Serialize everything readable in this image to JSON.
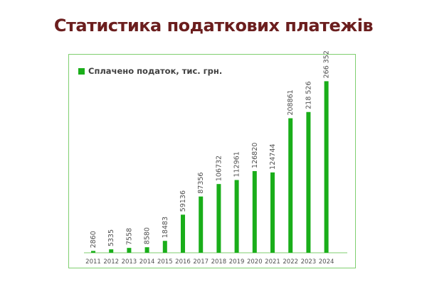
{
  "page": {
    "title": "Статистика податкових платежів"
  },
  "colors": {
    "bar": "#1aae1a",
    "title": "#6b1e1e",
    "frame": "#7fcf6f",
    "axis": "#7fcf6f",
    "text": "#505050"
  },
  "chart_data": {
    "type": "bar",
    "title": "",
    "xlabel": "",
    "ylabel": "",
    "legend": {
      "placement": "top-left",
      "entries": [
        "Сплачено податок, тис. грн."
      ]
    },
    "grid": false,
    "ylim": [
      0,
      280000
    ],
    "categories": [
      "2011",
      "2012",
      "2013",
      "2014",
      "2015",
      "2016",
      "2017",
      "2018",
      "2019",
      "2020",
      "2021",
      "2022",
      "2023",
      "2024"
    ],
    "series": [
      {
        "name": "Сплачено податок, тис. грн.",
        "values": [
          2860,
          5335,
          7558,
          8580,
          18483,
          59136,
          87356,
          106732,
          112961,
          126820,
          124744,
          208861,
          218526,
          266352
        ]
      }
    ],
    "data_labels": [
      "2860",
      "5335",
      "7558",
      "8580",
      "18483",
      "59136",
      "87356",
      "106732",
      "112961",
      "126820",
      "124744",
      "208861",
      "218 526",
      "266 352"
    ]
  }
}
